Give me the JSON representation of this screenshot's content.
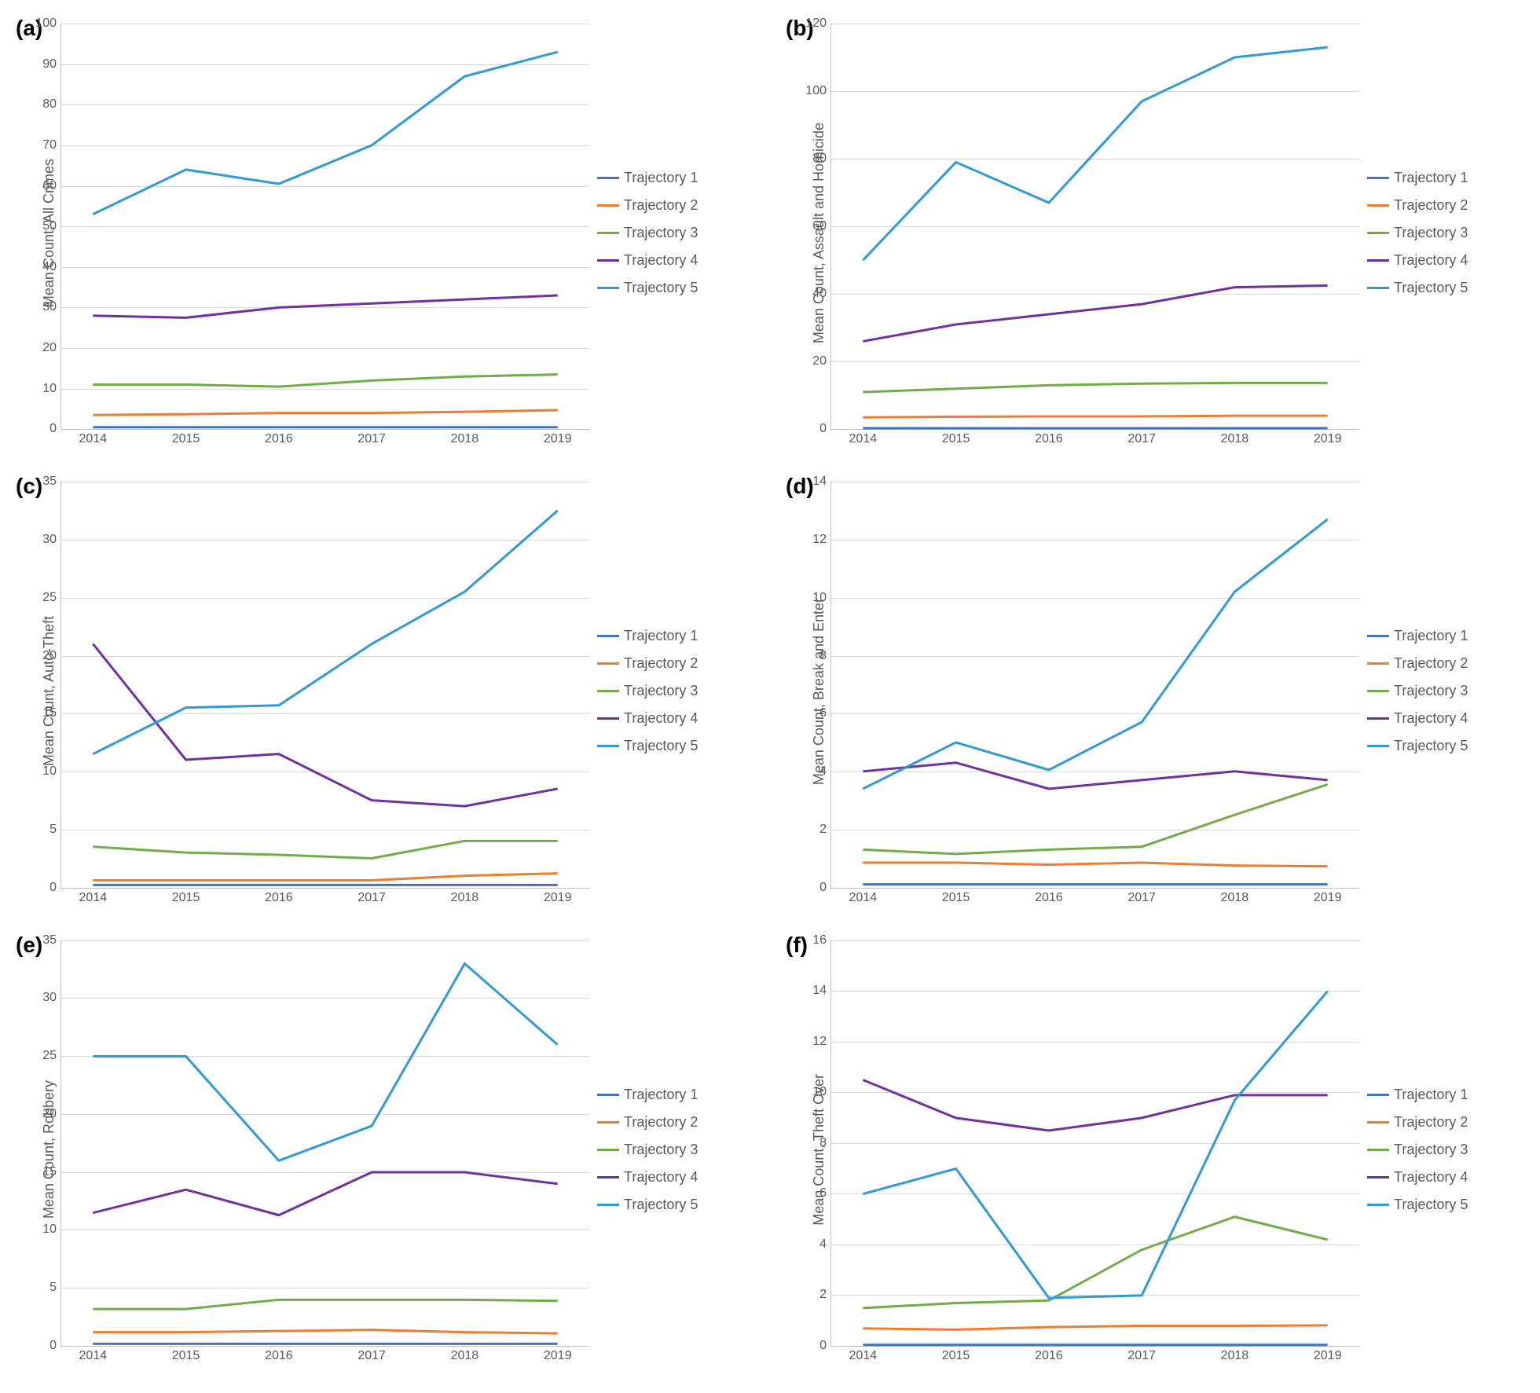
{
  "global": {
    "background_color": "#ffffff",
    "grid_color": "#d9d9d9",
    "axis_color": "#bfbfbf",
    "text_color": "#595959",
    "label_fontsize": 18,
    "tick_fontsize": 16,
    "panel_label_fontsize": 28,
    "line_width": 3,
    "categories": [
      "2014",
      "2015",
      "2016",
      "2017",
      "2018",
      "2019"
    ],
    "series_colors": {
      "t1": "#4472c4",
      "t2": "#ed7d31",
      "t3": "#70ad47",
      "t4": "#7030a0",
      "t5": "#2e9bd6"
    },
    "legend_labels": {
      "t1": "Trajectory 1",
      "t2": "Trajectory 2",
      "t3": "Trajectory 3",
      "t4": "Trajectory 4",
      "t5": "Trajectory 5"
    }
  },
  "panels": {
    "a": {
      "label": "(a)",
      "type": "line",
      "ylabel": "Mean Count, All Crimes",
      "ylim": [
        0,
        100
      ],
      "ytick_step": 10,
      "series": {
        "t1": [
          0.5,
          0.5,
          0.5,
          0.5,
          0.5,
          0.5
        ],
        "t2": [
          3.5,
          3.7,
          4.0,
          4.0,
          4.3,
          4.7
        ],
        "t3": [
          11,
          11,
          10.5,
          12,
          13,
          13.5
        ],
        "t4": [
          28,
          27.5,
          30,
          31,
          32,
          33
        ],
        "t5": [
          53,
          64,
          60.5,
          70,
          87,
          93
        ]
      }
    },
    "b": {
      "label": "(b)",
      "type": "line",
      "ylabel": "Mean Count, Assault and Homicide",
      "ylim": [
        0,
        120
      ],
      "ytick_step": 20,
      "series": {
        "t1": [
          0.3,
          0.3,
          0.3,
          0.3,
          0.3,
          0.3
        ],
        "t2": [
          3.5,
          3.7,
          3.8,
          3.8,
          4.0,
          4.0
        ],
        "t3": [
          11,
          12,
          13,
          13.5,
          13.7,
          13.7
        ],
        "t4": [
          26,
          31,
          34,
          37,
          42,
          42.5
        ],
        "t5": [
          50,
          79,
          67,
          97,
          110,
          113
        ]
      }
    },
    "c": {
      "label": "(c)",
      "type": "line",
      "ylabel": "Mean Count, Auto-Theft",
      "ylim": [
        0,
        35
      ],
      "ytick_step": 5,
      "series": {
        "t1": [
          0.2,
          0.2,
          0.2,
          0.2,
          0.2,
          0.2
        ],
        "t2": [
          0.6,
          0.6,
          0.6,
          0.6,
          1.0,
          1.2
        ],
        "t3": [
          3.5,
          3.0,
          2.8,
          2.5,
          4.0,
          4.0
        ],
        "t4": [
          21,
          11,
          11.5,
          7.5,
          7.0,
          8.5
        ],
        "t5": [
          11.5,
          15.5,
          15.7,
          21,
          25.5,
          32.5
        ]
      }
    },
    "d": {
      "label": "(d)",
      "type": "line",
      "ylabel": "Mean Count, Break and Enter",
      "ylim": [
        0,
        14
      ],
      "ytick_step": 2,
      "series": {
        "t1": [
          0.1,
          0.1,
          0.1,
          0.1,
          0.1,
          0.1
        ],
        "t2": [
          0.85,
          0.85,
          0.78,
          0.85,
          0.75,
          0.72
        ],
        "t3": [
          1.3,
          1.15,
          1.3,
          1.4,
          2.5,
          3.55
        ],
        "t4": [
          4.0,
          4.3,
          3.4,
          3.7,
          4.0,
          3.7
        ],
        "t5": [
          3.4,
          5.0,
          4.05,
          5.7,
          10.2,
          12.7
        ]
      }
    },
    "e": {
      "label": "(e)",
      "type": "line",
      "ylabel": "Mean Count, Robbery",
      "ylim": [
        0,
        35
      ],
      "ytick_step": 5,
      "series": {
        "t1": [
          0.2,
          0.2,
          0.2,
          0.2,
          0.2,
          0.2
        ],
        "t2": [
          1.2,
          1.2,
          1.3,
          1.4,
          1.2,
          1.1
        ],
        "t3": [
          3.2,
          3.2,
          4.0,
          4.0,
          4.0,
          3.9
        ],
        "t4": [
          11.5,
          13.5,
          11.3,
          15.0,
          15.0,
          14.0
        ],
        "t5": [
          25,
          25,
          16,
          19,
          33,
          26
        ]
      }
    },
    "f": {
      "label": "(f)",
      "type": "line",
      "ylabel": "Mean Count, Theft Over",
      "ylim": [
        0,
        16
      ],
      "ytick_step": 2,
      "series": {
        "t1": [
          0.05,
          0.05,
          0.05,
          0.05,
          0.05,
          0.05
        ],
        "t2": [
          0.7,
          0.65,
          0.75,
          0.8,
          0.8,
          0.82
        ],
        "t3": [
          1.5,
          1.7,
          1.8,
          3.8,
          5.1,
          4.2
        ],
        "t4": [
          10.5,
          9.0,
          8.5,
          9.0,
          9.9,
          9.9
        ],
        "t5": [
          6.0,
          7.0,
          1.9,
          2.0,
          9.7,
          14.0
        ]
      }
    }
  }
}
